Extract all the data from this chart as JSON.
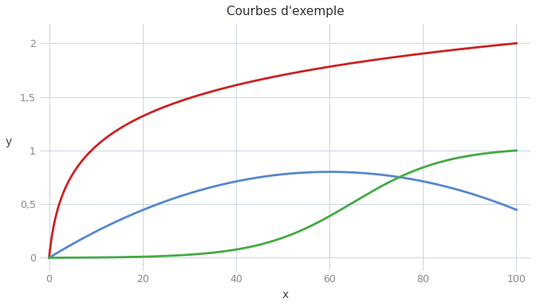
{
  "title": "Courbes d'exemple",
  "xlabel": "x",
  "ylabel": "y",
  "xlim": [
    -2,
    103
  ],
  "ylim": [
    -0.12,
    2.18
  ],
  "x_ticks": [
    0,
    20,
    40,
    60,
    80,
    100
  ],
  "y_ticks": [
    0,
    0.5,
    1,
    1.5,
    2
  ],
  "y_tick_labels": [
    "0",
    "0,5",
    "1",
    "1,5",
    "2"
  ],
  "background_color": "#ffffff",
  "grid_color": "#ccd9e8",
  "color_log": "#cc2222",
  "color_poly": "#5588cc",
  "color_logistic": "#44aa44",
  "line_width": 2.0,
  "log_scale": 2.0,
  "poly_a": -0.00015,
  "poly_b": 0.018,
  "poly_c": 0.0,
  "logistic_L": 1.0,
  "logistic_k": 0.1,
  "logistic_x0": 65.0,
  "title_fontsize": 11,
  "axis_label_fontsize": 10,
  "tick_fontsize": 9,
  "tick_color": "#888888"
}
